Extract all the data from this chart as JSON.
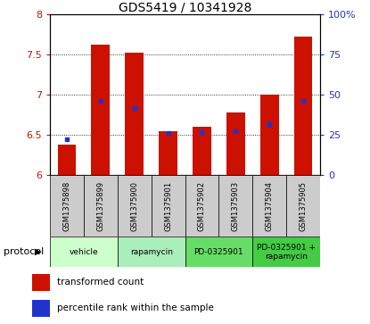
{
  "title": "GDS5419 / 10341928",
  "samples": [
    "GSM1375898",
    "GSM1375899",
    "GSM1375900",
    "GSM1375901",
    "GSM1375902",
    "GSM1375903",
    "GSM1375904",
    "GSM1375905"
  ],
  "red_values": [
    6.38,
    7.62,
    7.52,
    6.55,
    6.6,
    6.78,
    7.0,
    7.72
  ],
  "blue_values": [
    6.44,
    6.92,
    6.84,
    6.52,
    6.53,
    6.55,
    6.64,
    6.92
  ],
  "ylim_left": [
    6.0,
    8.0
  ],
  "ylim_right": [
    0,
    100
  ],
  "yticks_left": [
    6.0,
    6.5,
    7.0,
    7.5,
    8.0
  ],
  "ytick_labels_left": [
    "6",
    "6.5",
    "7",
    "7.5",
    "8"
  ],
  "yticks_right": [
    0,
    25,
    50,
    75,
    100
  ],
  "ytick_labels_right": [
    "0",
    "25",
    "50",
    "75",
    "100%"
  ],
  "grid_values": [
    6.5,
    7.0,
    7.5
  ],
  "protocol_labels": [
    "vehicle",
    "rapamycin",
    "PD-0325901",
    "PD-0325901 +\nrapamycin"
  ],
  "protocol_colors": [
    "#ccffcc",
    "#aaeebb",
    "#66dd66",
    "#44cc44"
  ],
  "protocol_ranges": [
    [
      0,
      1
    ],
    [
      2,
      3
    ],
    [
      4,
      5
    ],
    [
      6,
      7
    ]
  ],
  "red_color": "#cc1100",
  "blue_color": "#2233cc",
  "bar_bottom": 6.0,
  "bar_width": 0.55,
  "sample_bg_color": "#cccccc",
  "legend_red": "transformed count",
  "legend_blue": "percentile rank within the sample"
}
